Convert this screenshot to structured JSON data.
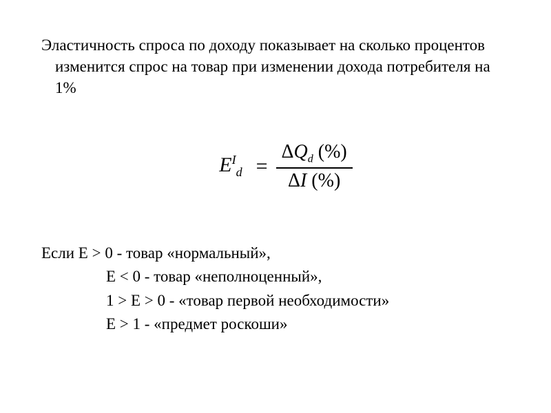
{
  "definition_text": "Эластичность спроса по доходу показывает на сколько процентов изменится спрос на товар при изменении дохода потребителя на 1%",
  "formula": {
    "E_symbol": "E",
    "sub_d": "d",
    "sup_I": "I",
    "equals": " = ",
    "numerator_delta": "Δ",
    "numerator_Q": "Q",
    "numerator_sub": "d",
    "numerator_percent": " (%)",
    "denominator_delta": "Δ",
    "denominator_I": "I",
    "denominator_percent": " (%)"
  },
  "conditions": {
    "line1": "Если Е > 0 - товар «нормальный»,",
    "line2": "Е < 0 - товар «неполноценный»,",
    "line3": "1 > Е > 0 - «товар первой необходимости»",
    "line4": "Е > 1 - «предмет роскоши»"
  },
  "styles": {
    "body_font_size": 23,
    "formula_font_size": 30,
    "text_color": "#000000",
    "background_color": "#ffffff",
    "fraction_border_color": "#000000"
  }
}
